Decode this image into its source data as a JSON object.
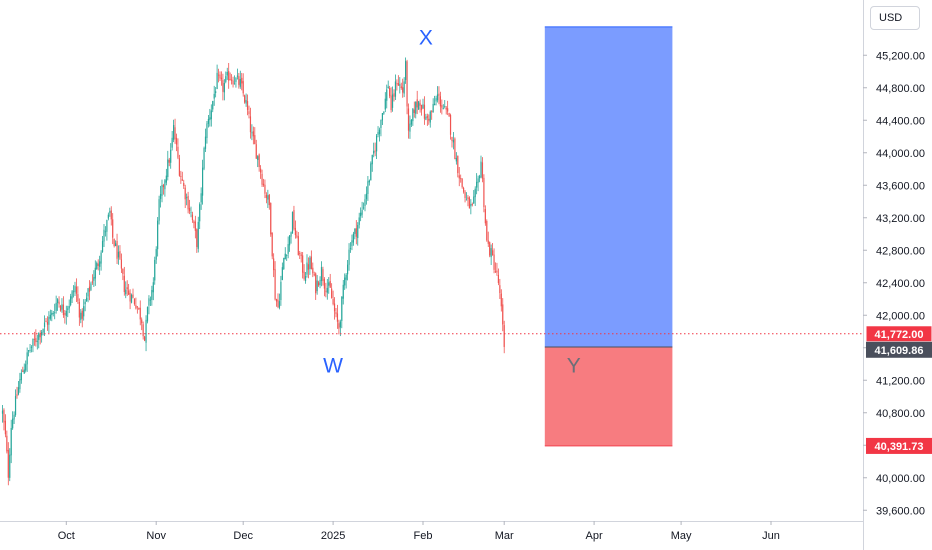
{
  "currency": "USD",
  "chart_data": {
    "type": "candlestick",
    "title": "",
    "xlabel": "",
    "ylabel": "",
    "ylim": [
      39450,
      45650
    ],
    "x_ticks": [
      {
        "label": "Oct",
        "day": 61
      },
      {
        "label": "Nov",
        "day": 92
      },
      {
        "label": "Dec",
        "day": 122
      },
      {
        "label": "2025",
        "day": 153
      },
      {
        "label": "Feb",
        "day": 184
      },
      {
        "label": "Mar",
        "day": 212
      },
      {
        "label": "Apr",
        "day": 243
      },
      {
        "label": "May",
        "day": 273
      },
      {
        "label": "Jun",
        "day": 304
      }
    ],
    "y_ticks": [
      39600,
      40000,
      40400,
      40800,
      41200,
      41600,
      42000,
      42400,
      42800,
      43200,
      43600,
      44000,
      44400,
      44800,
      45200
    ],
    "close_path": [
      [
        39,
        40800
      ],
      [
        40,
        40500
      ],
      [
        41,
        40050
      ],
      [
        42,
        40650
      ],
      [
        45,
        41200
      ],
      [
        48,
        41550
      ],
      [
        52,
        41800
      ],
      [
        56,
        42000
      ],
      [
        58,
        42200
      ],
      [
        60,
        42050
      ],
      [
        62,
        42150
      ],
      [
        64,
        42350
      ],
      [
        66,
        41950
      ],
      [
        68,
        42200
      ],
      [
        70,
        42450
      ],
      [
        72,
        42650
      ],
      [
        74,
        43000
      ],
      [
        76,
        43250
      ],
      [
        77,
        42950
      ],
      [
        79,
        42700
      ],
      [
        81,
        42350
      ],
      [
        83,
        42250
      ],
      [
        85,
        42150
      ],
      [
        87,
        41950
      ],
      [
        88,
        41700
      ],
      [
        89,
        42050
      ],
      [
        91,
        42400
      ],
      [
        93,
        43350
      ],
      [
        95,
        43700
      ],
      [
        97,
        44000
      ],
      [
        98,
        44300
      ],
      [
        100,
        43800
      ],
      [
        102,
        43500
      ],
      [
        104,
        43250
      ],
      [
        106,
        42900
      ],
      [
        107,
        43300
      ],
      [
        109,
        44250
      ],
      [
        111,
        44550
      ],
      [
        113,
        44900
      ],
      [
        115,
        44800
      ],
      [
        117,
        44950
      ],
      [
        119,
        44900
      ],
      [
        121,
        44850
      ],
      [
        123,
        44600
      ],
      [
        125,
        44200
      ],
      [
        127,
        43950
      ],
      [
        129,
        43600
      ],
      [
        131,
        43350
      ],
      [
        133,
        42250
      ],
      [
        134,
        42100
      ],
      [
        136,
        42700
      ],
      [
        138,
        42950
      ],
      [
        139,
        43200
      ],
      [
        141,
        42800
      ],
      [
        143,
        42500
      ],
      [
        145,
        42650
      ],
      [
        147,
        42350
      ],
      [
        149,
        42550
      ],
      [
        150,
        42400
      ],
      [
        152,
        42300
      ],
      [
        154,
        41950
      ],
      [
        155,
        41850
      ],
      [
        157,
        42450
      ],
      [
        159,
        42900
      ],
      [
        161,
        43050
      ],
      [
        163,
        43300
      ],
      [
        165,
        43600
      ],
      [
        167,
        44000
      ],
      [
        169,
        44350
      ],
      [
        171,
        44650
      ],
      [
        172,
        44850
      ],
      [
        173,
        44550
      ],
      [
        175,
        44900
      ],
      [
        177,
        44750
      ],
      [
        178,
        45050
      ],
      [
        179,
        44200
      ],
      [
        181,
        44550
      ],
      [
        183,
        44650
      ],
      [
        185,
        44400
      ],
      [
        187,
        44500
      ],
      [
        189,
        44700
      ],
      [
        191,
        44550
      ],
      [
        193,
        44400
      ],
      [
        195,
        44000
      ],
      [
        197,
        43650
      ],
      [
        199,
        43400
      ],
      [
        201,
        43300
      ],
      [
        203,
        43650
      ],
      [
        204,
        43900
      ],
      [
        206,
        42900
      ],
      [
        208,
        42700
      ],
      [
        210,
        42400
      ],
      [
        211,
        42050
      ],
      [
        212,
        41610
      ]
    ],
    "last_price": 41609.86,
    "dotted_line_price": 41772.0,
    "projection_box": {
      "entry": 41609.86,
      "target": 45550,
      "stop": 40391.73,
      "start_day": 226,
      "end_day": 270,
      "colors": {
        "target_zone": "#7b9cff",
        "stop_zone": "#f77c80"
      }
    },
    "price_labels": [
      {
        "text": "41,772.00",
        "value": 41772,
        "kind": "dotted",
        "color": "#f23645",
        "outline": true
      },
      {
        "text": "41,609.86",
        "value": 41609.86,
        "kind": "last",
        "color": "#4a4f5c",
        "outline": false
      },
      {
        "text": "40,391.73",
        "value": 40391.73,
        "kind": "stop",
        "color": "#f23645",
        "outline": false
      }
    ],
    "annotations": [
      {
        "text": "W",
        "day": 153,
        "price": 41380,
        "color": "#2962ff"
      },
      {
        "text": "X",
        "day": 185,
        "price": 45420,
        "color": "#2962ff"
      },
      {
        "text": "Y",
        "day": 236,
        "price": 41380,
        "color": "#6b6f78"
      }
    ],
    "colors": {
      "up": "#26a69a",
      "down": "#ef5350"
    }
  }
}
